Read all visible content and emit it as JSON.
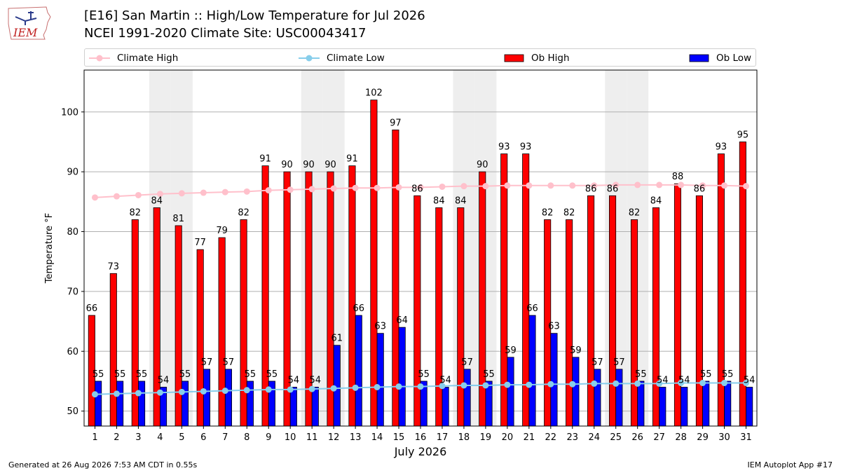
{
  "header": {
    "title_line1": "[E16] San Martin :: High/Low Temperature for Jul 2026",
    "title_line2": "NCEI 1991-2020 Climate Site: USC00043417",
    "logo_text": "IEM"
  },
  "legend": {
    "items": [
      {
        "label": "Climate High",
        "color": "#ffc0cb",
        "kind": "line"
      },
      {
        "label": "Climate Low",
        "color": "#87ceeb",
        "kind": "line"
      },
      {
        "label": "Ob High",
        "color": "#ff0000",
        "kind": "box"
      },
      {
        "label": "Ob Low",
        "color": "#0000ff",
        "kind": "box"
      }
    ]
  },
  "footer": {
    "left": "Generated at 26 Aug 2026 7:53 AM CDT in 0.55s",
    "right": "IEM Autoplot App #17"
  },
  "chart_data": {
    "type": "bar",
    "xlabel": "July 2026",
    "ylabel": "Temperature °F",
    "ylim": [
      47.5,
      107
    ],
    "yticks": [
      50,
      60,
      70,
      80,
      90,
      100
    ],
    "grid": true,
    "legend_position": "top",
    "weekend_shading_days": [
      4,
      5,
      11,
      12,
      18,
      19,
      25,
      26
    ],
    "categories": [
      "1",
      "2",
      "3",
      "4",
      "5",
      "6",
      "7",
      "8",
      "9",
      "10",
      "11",
      "12",
      "13",
      "14",
      "15",
      "16",
      "17",
      "18",
      "19",
      "20",
      "21",
      "22",
      "23",
      "24",
      "25",
      "26",
      "27",
      "28",
      "29",
      "30",
      "31"
    ],
    "series": [
      {
        "name": "Ob High",
        "type": "bar",
        "color": "#ff0000",
        "values": [
          66,
          73,
          82,
          84,
          81,
          77,
          79,
          82,
          91,
          90,
          90,
          90,
          91,
          102,
          97,
          86,
          84,
          84,
          90,
          93,
          93,
          82,
          82,
          86,
          86,
          82,
          84,
          88,
          86,
          93,
          95
        ]
      },
      {
        "name": "Ob Low",
        "type": "bar",
        "color": "#0000ff",
        "values": [
          55,
          55,
          55,
          54,
          55,
          57,
          57,
          55,
          55,
          54,
          54,
          61,
          66,
          63,
          64,
          55,
          54,
          57,
          55,
          59,
          66,
          63,
          59,
          57,
          57,
          55,
          54,
          54,
          55,
          55,
          54
        ]
      },
      {
        "name": "Climate High",
        "type": "line",
        "color": "#ffc0cb",
        "values": [
          85.7,
          85.9,
          86.1,
          86.3,
          86.4,
          86.5,
          86.6,
          86.7,
          86.9,
          87.0,
          87.1,
          87.2,
          87.3,
          87.3,
          87.4,
          87.4,
          87.5,
          87.6,
          87.6,
          87.7,
          87.7,
          87.7,
          87.7,
          87.7,
          87.8,
          87.8,
          87.8,
          87.8,
          87.7,
          87.7,
          87.6
        ]
      },
      {
        "name": "Climate Low",
        "type": "line",
        "color": "#87ceeb",
        "values": [
          52.8,
          52.9,
          53.0,
          53.1,
          53.2,
          53.3,
          53.4,
          53.5,
          53.6,
          53.6,
          53.7,
          53.8,
          53.9,
          54.0,
          54.1,
          54.1,
          54.2,
          54.3,
          54.3,
          54.4,
          54.4,
          54.5,
          54.5,
          54.6,
          54.6,
          54.6,
          54.6,
          54.7,
          54.7,
          54.7,
          54.7
        ]
      }
    ]
  }
}
